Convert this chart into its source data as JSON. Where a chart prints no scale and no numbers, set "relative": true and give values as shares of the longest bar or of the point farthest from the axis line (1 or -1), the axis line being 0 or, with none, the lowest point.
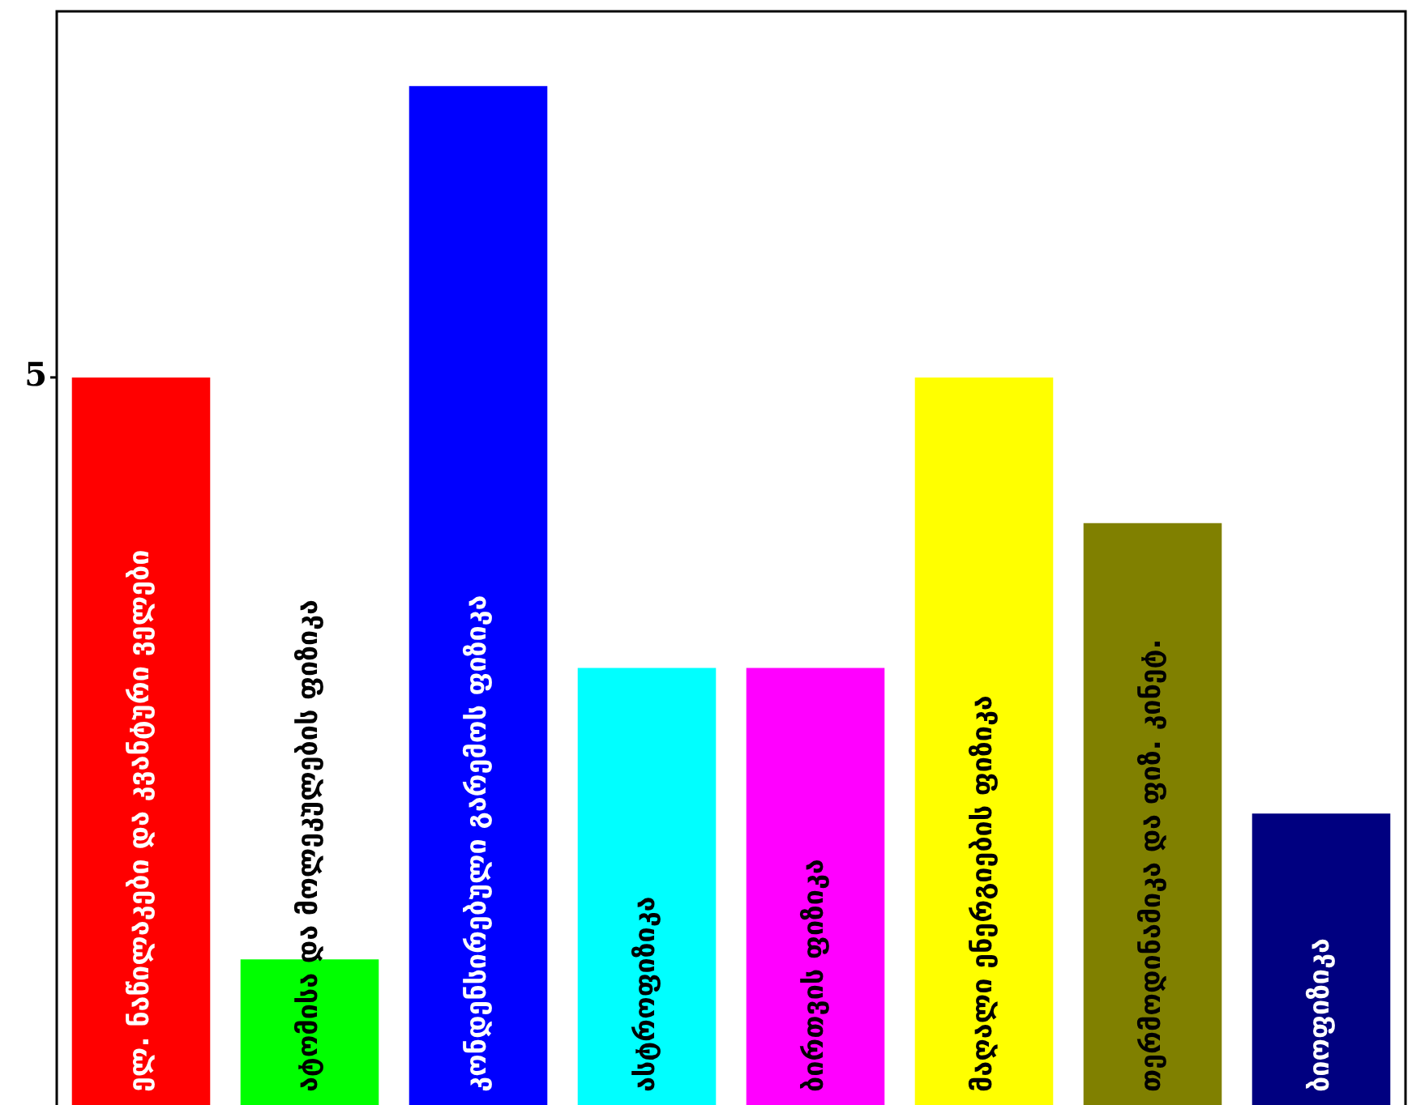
{
  "chart_data": {
    "type": "bar",
    "relative": true,
    "grid": false,
    "legend": false,
    "categories": [
      "ელ. ნაწილაკები და კვანტური ველები",
      "ატომისა და მოლეკულების ფიზიკა",
      "კონდენსირებული გარემოს ფიზიკა",
      "ასტროფიზიკა",
      "ბირთვის ფიზიკა",
      "მაღალი ენერგიების ფიზიკა",
      "თერმოდინამიკა და ფიზ. კინეტ.",
      "ბიოფიზიკა"
    ],
    "values": [
      0.714,
      0.143,
      1,
      0.429,
      0.429,
      0.714,
      0.571,
      0.286
    ],
    "colors": [
      "#ff0000",
      "#00ff00",
      "#0000ff",
      "#00ffff",
      "#ff00ff",
      "#ffff00",
      "#808000",
      "#000080"
    ],
    "annotations": [
      {
        "text": "5",
        "x": "ელ. ნაწილაკები და კვანტური ველები",
        "y": 0.714
      }
    ]
  }
}
